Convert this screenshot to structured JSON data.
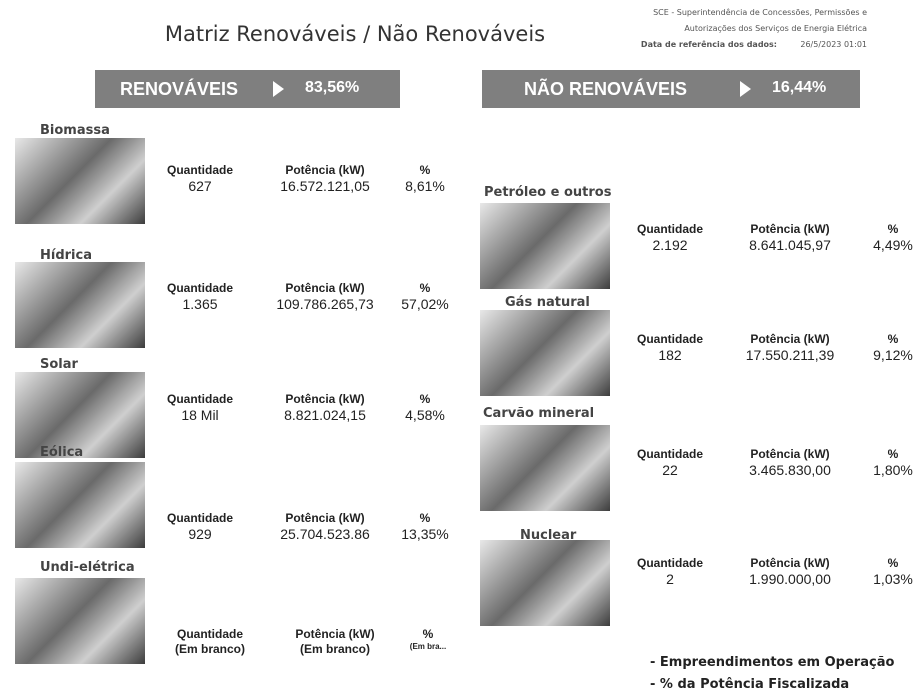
{
  "header": {
    "title": "Matriz Renováveis / Não Renováveis",
    "source_lines": [
      "SCE - Superintendência de Concessões, Permissões e",
      "Autorizações dos Serviços de Energia Elétrica"
    ],
    "reference_label": "Data de referência dos dados:",
    "reference_date": "26/5/2023 01:01"
  },
  "banners": [
    {
      "label": "RENOVÁVEIS",
      "value": "83,56%"
    },
    {
      "label": "NÃO RENOVÁVEIS",
      "value": "16,44%"
    }
  ],
  "renewables": [
    {
      "name": "Biomassa",
      "quantity_label": "Quantidade",
      "quantity": "627",
      "power_label": "Potência (kW)",
      "power": "16.572.121,05",
      "percent_label": "%",
      "percent": "8,61%"
    },
    {
      "name": "Hídrica",
      "quantity_label": "Quantidade",
      "quantity": "1.365",
      "power_label": "Potência (kW)",
      "power": "109.786.265,73",
      "percent_label": "%",
      "percent": "57,02%"
    },
    {
      "name": "Solar",
      "quantity_label": "Quantidade",
      "quantity": "18 Mil",
      "power_label": "Potência (kW)",
      "power": "8.821.024,15",
      "percent_label": "%",
      "percent": "4,58%"
    },
    {
      "name": "Eólica",
      "quantity_label": "Quantidade",
      "quantity": "929",
      "power_label": "Potência (kW)",
      "power": "25.704.523.86",
      "percent_label": "%",
      "percent": "13,35%"
    },
    {
      "name": "Undi-elétrica",
      "quantity_label": "Quantidade",
      "quantity": "(Em branco)",
      "power_label": "Potência (kW)",
      "power": "(Em branco)",
      "percent_label": "%",
      "percent": "(Em bra..."
    }
  ],
  "non_renewables": [
    {
      "name": "Petróleo e outros",
      "quantity_label": "Quantidade",
      "quantity": "2.192",
      "power_label": "Potência (kW)",
      "power": "8.641.045,97",
      "percent_label": "%",
      "percent": "4,49%"
    },
    {
      "name": "Gás natural",
      "quantity_label": "Quantidade",
      "quantity": "182",
      "power_label": "Potência (kW)",
      "power": "17.550.211,39",
      "percent_label": "%",
      "percent": "9,12%"
    },
    {
      "name": "Carvão mineral",
      "quantity_label": "Quantidade",
      "quantity": "22",
      "power_label": "Potência (kW)",
      "power": "3.465.830,00",
      "percent_label": "%",
      "percent": "1,80%"
    },
    {
      "name": "Nuclear",
      "quantity_label": "Quantidade",
      "quantity": "2",
      "power_label": "Potência (kW)",
      "power": "1.990.000,00",
      "percent_label": "%",
      "percent": "1,03%"
    }
  ],
  "notes": [
    "- Empreendimentos em Operação",
    "- % da Potência Fiscalizada"
  ]
}
